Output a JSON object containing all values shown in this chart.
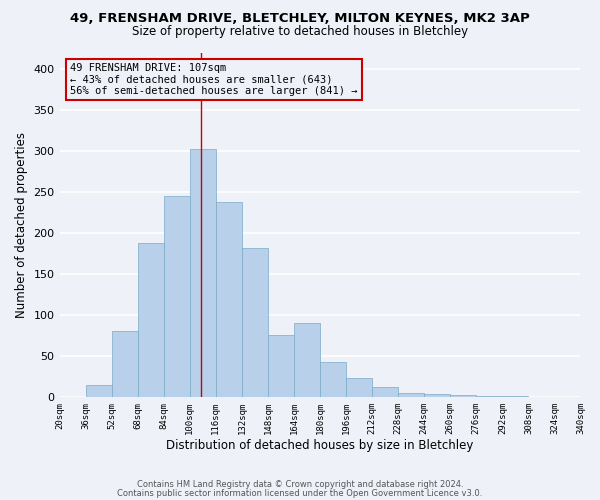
{
  "title": "49, FRENSHAM DRIVE, BLETCHLEY, MILTON KEYNES, MK2 3AP",
  "subtitle": "Size of property relative to detached houses in Bletchley",
  "xlabel": "Distribution of detached houses by size in Bletchley",
  "ylabel": "Number of detached properties",
  "bar_color": "#b8d0ea",
  "bar_edge_color": "#7aaac8",
  "background_color": "#eef2f8",
  "grid_color": "white",
  "annotation_line_color": "#cc0000",
  "annotation_line1": "49 FRENSHAM DRIVE: 107sqm",
  "annotation_line2": "← 43% of detached houses are smaller (643)",
  "annotation_line3": "56% of semi-detached houses are larger (841) →",
  "annotation_box_edge": "#cc0000",
  "footer_line1": "Contains HM Land Registry data © Crown copyright and database right 2024.",
  "footer_line2": "Contains public sector information licensed under the Open Government Licence v3.0.",
  "bin_edges": [
    20,
    36,
    52,
    68,
    84,
    100,
    116,
    132,
    148,
    164,
    180,
    196,
    212,
    228,
    244,
    260,
    276,
    292,
    308,
    324,
    340
  ],
  "bin_counts": [
    0,
    15,
    80,
    188,
    245,
    302,
    238,
    181,
    75,
    90,
    42,
    23,
    12,
    5,
    3,
    2,
    1,
    1,
    0,
    0
  ],
  "property_sqm": 107,
  "ylim": [
    0,
    420
  ],
  "yticks": [
    0,
    50,
    100,
    150,
    200,
    250,
    300,
    350,
    400
  ]
}
